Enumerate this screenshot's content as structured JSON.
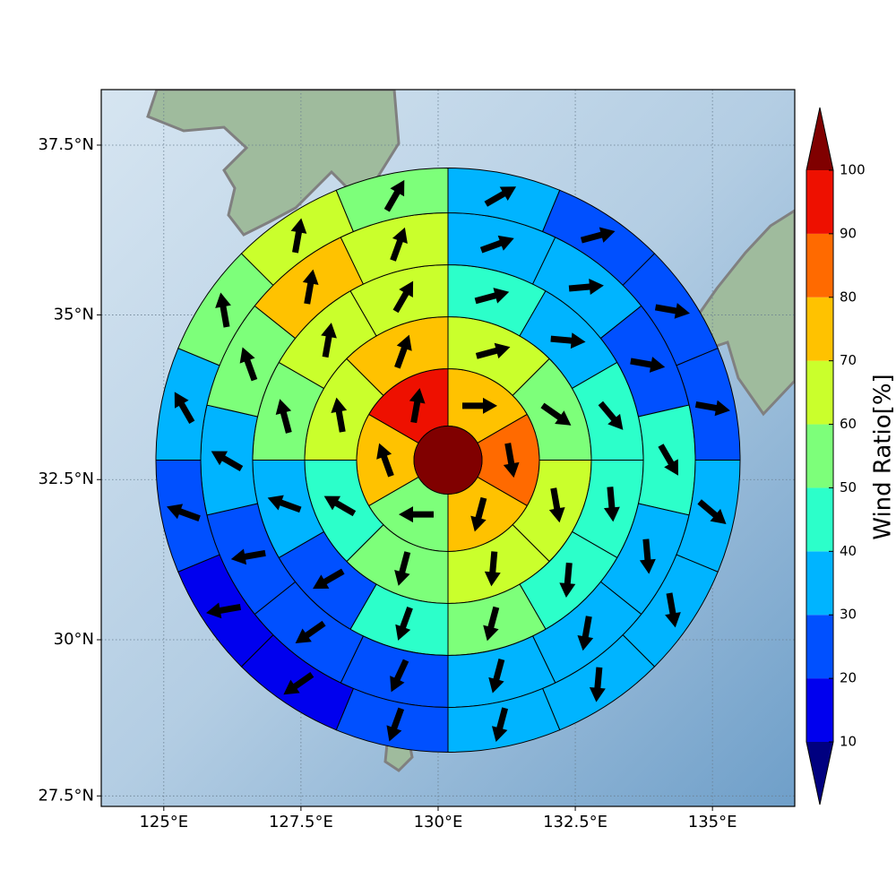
{
  "chart_data": {
    "type": "polar-sector-map",
    "projection": "mercator",
    "grid": true,
    "xlim": [
      123.86,
      136.5
    ],
    "ylim": [
      27.33,
      38.3
    ],
    "xticks": [
      {
        "value": 125,
        "label": "125°E"
      },
      {
        "value": 127.5,
        "label": "127.5°E"
      },
      {
        "value": 130,
        "label": "130°E"
      },
      {
        "value": 132.5,
        "label": "132.5°E"
      },
      {
        "value": 135,
        "label": "135°E"
      }
    ],
    "yticks": [
      {
        "value": 27.5,
        "label": "27.5°N"
      },
      {
        "value": 30,
        "label": "30°N"
      },
      {
        "value": 32.5,
        "label": "32.5°N"
      },
      {
        "value": 35,
        "label": "35°N"
      },
      {
        "value": 37.5,
        "label": "37.5°N"
      }
    ],
    "center": {
      "lon": 130.18,
      "lat": 32.8,
      "value": 105
    },
    "rings": [
      {
        "values": [
          75,
          85,
          75,
          55,
          75,
          95
        ],
        "directions": [
          90,
          170,
          195,
          270,
          340,
          10
        ]
      },
      {
        "values": [
          65,
          55,
          65,
          65,
          55,
          45,
          65,
          75
        ],
        "directions": [
          75,
          125,
          170,
          185,
          195,
          300,
          350,
          20
        ]
      },
      {
        "values": [
          45,
          35,
          45,
          45,
          45,
          55,
          45,
          25,
          35,
          55,
          65,
          65
        ],
        "directions": [
          75,
          95,
          140,
          175,
          185,
          195,
          200,
          240,
          290,
          345,
          10,
          30
        ]
      },
      {
        "values": [
          35,
          35,
          25,
          45,
          35,
          35,
          35,
          25,
          25,
          25,
          35,
          55,
          75,
          65
        ],
        "directions": [
          70,
          85,
          100,
          150,
          175,
          190,
          195,
          205,
          235,
          260,
          300,
          340,
          10,
          20
        ]
      },
      {
        "values": [
          35,
          25,
          25,
          25,
          35,
          35,
          35,
          35,
          25,
          15,
          15,
          25,
          35,
          55,
          65,
          55
        ],
        "directions": [
          60,
          75,
          100,
          100,
          130,
          170,
          185,
          195,
          200,
          235,
          260,
          290,
          330,
          350,
          10,
          30
        ]
      }
    ],
    "colorbar": {
      "label": "Wind Ratio[%]",
      "lim": [
        10,
        100
      ],
      "ticks": [
        10,
        20,
        30,
        40,
        50,
        60,
        70,
        80,
        90,
        100
      ],
      "extend": "both",
      "colors": [
        "#000080",
        "#0000ee",
        "#0050ff",
        "#00b4ff",
        "#2cffca",
        "#7dff7a",
        "#caff2c",
        "#ffc200",
        "#ff6a00",
        "#ee1000",
        "#800000"
      ]
    }
  }
}
